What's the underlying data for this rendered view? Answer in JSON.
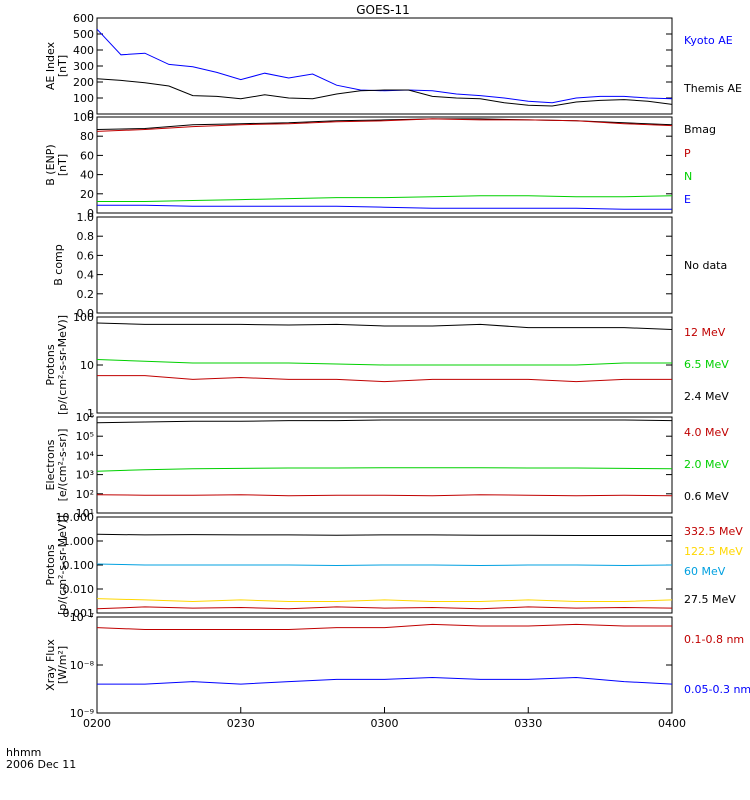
{
  "title": "GOES-11",
  "footer": {
    "time_label": "hhmm",
    "date_label": "2006 Dec 11"
  },
  "x_ticks": [
    "0200",
    "0230",
    "0300",
    "0330",
    "0400"
  ],
  "colors": {
    "black": "#000000",
    "blue": "#0000ff",
    "red": "#c00000",
    "green": "#00d000",
    "yellow": "#ffd700",
    "cyan": "#00a0e0"
  },
  "panels": [
    {
      "ylabel": [
        "AE Index",
        "[nT]"
      ],
      "y_ticks": [
        "0",
        "100",
        "200",
        "300",
        "400",
        "500",
        "600"
      ],
      "legend": [
        {
          "text": "Kyoto AE",
          "color": "#0000ff"
        },
        {
          "text": "Themis AE",
          "color": "#000000"
        }
      ]
    },
    {
      "ylabel": [
        "B (ENP)",
        "[nT]"
      ],
      "y_ticks": [
        "0",
        "20",
        "40",
        "60",
        "80",
        "100"
      ],
      "legend": [
        {
          "text": "Bmag",
          "color": "#000000"
        },
        {
          "text": "P",
          "color": "#c00000"
        },
        {
          "text": "N",
          "color": "#00d000"
        },
        {
          "text": "E",
          "color": "#0000ff"
        }
      ]
    },
    {
      "ylabel": [
        "B comp"
      ],
      "y_ticks": [
        "0.0",
        "0.2",
        "0.4",
        "0.6",
        "0.8",
        "1.0"
      ],
      "legend": [
        {
          "text": "No data",
          "color": "#000000"
        }
      ]
    },
    {
      "ylabel": [
        "Protons",
        "[p/(cm²-s-sr-MeV)]"
      ],
      "y_ticks": [
        "1",
        "10",
        "100"
      ],
      "legend": [
        {
          "text": "12 MeV",
          "color": "#c00000"
        },
        {
          "text": "6.5 MeV",
          "color": "#00d000"
        },
        {
          "text": "2.4 MeV",
          "color": "#000000"
        }
      ]
    },
    {
      "ylabel": [
        "Electrons",
        "[e/(cm²-s-sr)]"
      ],
      "y_ticks": [
        "10¹",
        "10²",
        "10³",
        "10⁴",
        "10⁵",
        "10⁶"
      ],
      "legend": [
        {
          "text": "4.0 MeV",
          "color": "#c00000"
        },
        {
          "text": "2.0 MeV",
          "color": "#00d000"
        },
        {
          "text": "0.6 MeV",
          "color": "#000000"
        }
      ]
    },
    {
      "ylabel": [
        "Protons",
        "[p/(cm²-s-sr-MeV)]"
      ],
      "y_ticks": [
        "0.001",
        "0.010",
        "0.100",
        "1.000",
        "10.000"
      ],
      "legend": [
        {
          "text": "332.5 MeV",
          "color": "#c00000"
        },
        {
          "text": "122.5 MeV",
          "color": "#ffd700"
        },
        {
          "text": "60 MeV",
          "color": "#00a0e0"
        },
        {
          "text": "27.5 MeV",
          "color": "#000000"
        }
      ]
    },
    {
      "ylabel": [
        "Xray Flux",
        "[W/m²]"
      ],
      "y_ticks": [
        "10⁻⁹",
        "10⁻⁸",
        "10⁻⁷"
      ],
      "legend": [
        {
          "text": "0.1-0.8 nm",
          "color": "#c00000"
        },
        {
          "text": "0.05-0.3 nm",
          "color": "#0000ff"
        }
      ]
    }
  ],
  "chart_data": {
    "type": "line",
    "title": "GOES-11",
    "x_range": [
      "0200",
      "0400"
    ],
    "panels": [
      {
        "ylim": [
          0,
          600
        ],
        "scale": "linear",
        "series": [
          {
            "name": "Kyoto AE",
            "color": "#0000ff",
            "x": [
              "0200",
              "0205",
              "0210",
              "0215",
              "0220",
              "0225",
              "0230",
              "0235",
              "0240",
              "0245",
              "0250",
              "0255",
              "0300",
              "0305",
              "0310",
              "0315",
              "0320",
              "0325",
              "0330",
              "0335",
              "0340",
              "0345",
              "0350",
              "0355",
              "0400"
            ],
            "values": [
              530,
              370,
              380,
              310,
              295,
              260,
              215,
              255,
              225,
              250,
              180,
              150,
              145,
              150,
              145,
              125,
              115,
              100,
              80,
              70,
              100,
              110,
              110,
              100,
              95
            ]
          },
          {
            "name": "Themis AE",
            "color": "#000000",
            "x": [
              "0200",
              "0205",
              "0210",
              "0215",
              "0220",
              "0225",
              "0230",
              "0235",
              "0240",
              "0245",
              "0250",
              "0255",
              "0300",
              "0305",
              "0310",
              "0315",
              "0320",
              "0325",
              "0330",
              "0335",
              "0340",
              "0345",
              "0350",
              "0355",
              "0400"
            ],
            "values": [
              220,
              210,
              195,
              175,
              115,
              110,
              95,
              120,
              100,
              95,
              125,
              145,
              150,
              150,
              110,
              100,
              95,
              70,
              55,
              50,
              75,
              85,
              90,
              80,
              60
            ]
          }
        ]
      },
      {
        "ylim": [
          0,
          100
        ],
        "scale": "linear",
        "series": [
          {
            "name": "Bmag",
            "color": "#000000",
            "x": [
              "0200",
              "0210",
              "0220",
              "0230",
              "0240",
              "0250",
              "0300",
              "0310",
              "0320",
              "0330",
              "0340",
              "0350",
              "0400"
            ],
            "values": [
              87,
              88,
              92,
              93,
              94,
              96,
              97,
              98,
              98,
              97,
              96,
              94,
              92
            ]
          },
          {
            "name": "P",
            "color": "#c00000",
            "x": [
              "0200",
              "0210",
              "0220",
              "0230",
              "0240",
              "0250",
              "0300",
              "0310",
              "0320",
              "0330",
              "0340",
              "0350",
              "0400"
            ],
            "values": [
              85,
              87,
              90,
              92,
              93,
              95,
              96,
              98,
              97,
              97,
              96,
              93,
              91
            ]
          },
          {
            "name": "N",
            "color": "#00d000",
            "x": [
              "0200",
              "0210",
              "0220",
              "0230",
              "0240",
              "0250",
              "0300",
              "0310",
              "0320",
              "0330",
              "0340",
              "0350",
              "0400"
            ],
            "values": [
              12,
              12,
              13,
              14,
              15,
              16,
              16,
              17,
              18,
              18,
              17,
              17,
              18
            ]
          },
          {
            "name": "E",
            "color": "#0000ff",
            "x": [
              "0200",
              "0210",
              "0220",
              "0230",
              "0240",
              "0250",
              "0300",
              "0310",
              "0320",
              "0330",
              "0340",
              "0350",
              "0400"
            ],
            "values": [
              8,
              8,
              7,
              7,
              7,
              7,
              6,
              5,
              5,
              5,
              5,
              4,
              4
            ]
          }
        ]
      },
      {
        "ylim": [
          0,
          1
        ],
        "scale": "linear",
        "series": []
      },
      {
        "ylim": [
          1,
          100
        ],
        "scale": "log",
        "series": [
          {
            "name": "12 MeV",
            "color": "#c00000",
            "x": [
              "0200",
              "0210",
              "0220",
              "0230",
              "0240",
              "0250",
              "0300",
              "0310",
              "0320",
              "0330",
              "0340",
              "0350",
              "0400"
            ],
            "values": [
              6,
              6,
              5,
              5.5,
              5,
              5,
              4.5,
              5,
              5,
              5,
              4.5,
              5,
              5
            ]
          },
          {
            "name": "6.5 MeV",
            "color": "#00d000",
            "x": [
              "0200",
              "0210",
              "0220",
              "0230",
              "0240",
              "0250",
              "0300",
              "0310",
              "0320",
              "0330",
              "0340",
              "0350",
              "0400"
            ],
            "values": [
              13,
              12,
              11,
              11,
              11,
              10.5,
              10,
              10,
              10,
              10,
              10,
              11,
              11
            ]
          },
          {
            "name": "2.4 MeV",
            "color": "#000000",
            "x": [
              "0200",
              "0210",
              "0220",
              "0230",
              "0240",
              "0250",
              "0300",
              "0310",
              "0320",
              "0330",
              "0340",
              "0350",
              "0400"
            ],
            "values": [
              75,
              70,
              70,
              70,
              68,
              70,
              65,
              65,
              70,
              60,
              60,
              60,
              55
            ]
          }
        ]
      },
      {
        "ylim": [
          10,
          1000000
        ],
        "scale": "log",
        "series": [
          {
            "name": "4.0 MeV",
            "color": "#c00000",
            "x": [
              "0200",
              "0210",
              "0220",
              "0230",
              "0240",
              "0250",
              "0300",
              "0310",
              "0320",
              "0330",
              "0340",
              "0350",
              "0400"
            ],
            "values": [
              90,
              85,
              85,
              90,
              80,
              85,
              85,
              80,
              90,
              85,
              80,
              85,
              80
            ]
          },
          {
            "name": "2.0 MeV",
            "color": "#00d000",
            "x": [
              "0200",
              "0210",
              "0220",
              "0230",
              "0240",
              "0250",
              "0300",
              "0310",
              "0320",
              "0330",
              "0340",
              "0350",
              "0400"
            ],
            "values": [
              1500,
              1800,
              2000,
              2100,
              2200,
              2200,
              2300,
              2300,
              2300,
              2200,
              2200,
              2100,
              2000
            ]
          },
          {
            "name": "0.6 MeV",
            "color": "#000000",
            "x": [
              "0200",
              "0210",
              "0220",
              "0230",
              "0240",
              "0250",
              "0300",
              "0310",
              "0320",
              "0330",
              "0340",
              "0350",
              "0400"
            ],
            "values": [
              500000,
              550000,
              600000,
              600000,
              650000,
              650000,
              700000,
              700000,
              700000,
              700000,
              700000,
              700000,
              650000
            ]
          }
        ]
      },
      {
        "ylim": [
          0.001,
          10
        ],
        "scale": "log",
        "series": [
          {
            "name": "332.5 MeV",
            "color": "#c00000",
            "x": [
              "0200",
              "0210",
              "0220",
              "0230",
              "0240",
              "0250",
              "0300",
              "0310",
              "0320",
              "0330",
              "0340",
              "0350",
              "0400"
            ],
            "values": [
              0.0015,
              0.0018,
              0.0016,
              0.0017,
              0.0015,
              0.0018,
              0.0016,
              0.0017,
              0.0015,
              0.0018,
              0.0016,
              0.0017,
              0.0016
            ]
          },
          {
            "name": "122.5 MeV",
            "color": "#ffd700",
            "x": [
              "0200",
              "0210",
              "0220",
              "0230",
              "0240",
              "0250",
              "0300",
              "0310",
              "0320",
              "0330",
              "0340",
              "0350",
              "0400"
            ],
            "values": [
              0.004,
              0.0035,
              0.003,
              0.0035,
              0.003,
              0.003,
              0.0035,
              0.003,
              0.003,
              0.0035,
              0.003,
              0.003,
              0.0035
            ]
          },
          {
            "name": "60 MeV",
            "color": "#00a0e0",
            "x": [
              "0200",
              "0210",
              "0220",
              "0230",
              "0240",
              "0250",
              "0300",
              "0310",
              "0320",
              "0330",
              "0340",
              "0350",
              "0400"
            ],
            "values": [
              0.11,
              0.1,
              0.1,
              0.1,
              0.1,
              0.095,
              0.1,
              0.1,
              0.095,
              0.1,
              0.1,
              0.095,
              0.1
            ]
          },
          {
            "name": "27.5 MeV",
            "color": "#000000",
            "x": [
              "0200",
              "0210",
              "0220",
              "0230",
              "0240",
              "0250",
              "0300",
              "0310",
              "0320",
              "0330",
              "0340",
              "0350",
              "0400"
            ],
            "values": [
              1.9,
              1.8,
              1.85,
              1.8,
              1.8,
              1.75,
              1.8,
              1.8,
              1.75,
              1.75,
              1.7,
              1.7,
              1.7
            ]
          }
        ]
      },
      {
        "ylim": [
          1e-09,
          1e-07
        ],
        "scale": "log",
        "series": [
          {
            "name": "0.1-0.8 nm",
            "color": "#c00000",
            "x": [
              "0200",
              "0210",
              "0220",
              "0230",
              "0240",
              "0250",
              "0300",
              "0310",
              "0320",
              "0330",
              "0340",
              "0350",
              "0400"
            ],
            "values": [
              6e-08,
              5.5e-08,
              5.5e-08,
              5.5e-08,
              5.5e-08,
              6e-08,
              6e-08,
              7e-08,
              6.5e-08,
              6.5e-08,
              7e-08,
              6.5e-08,
              6.5e-08
            ]
          },
          {
            "name": "0.05-0.3 nm",
            "color": "#0000ff",
            "x": [
              "0200",
              "0210",
              "0220",
              "0230",
              "0240",
              "0250",
              "0300",
              "0310",
              "0320",
              "0330",
              "0340",
              "0350",
              "0400"
            ],
            "values": [
              4e-09,
              4e-09,
              4.5e-09,
              4e-09,
              4.5e-09,
              5e-09,
              5e-09,
              5.5e-09,
              5e-09,
              5e-09,
              5.5e-09,
              4.5e-09,
              4e-09
            ]
          }
        ]
      }
    ]
  }
}
